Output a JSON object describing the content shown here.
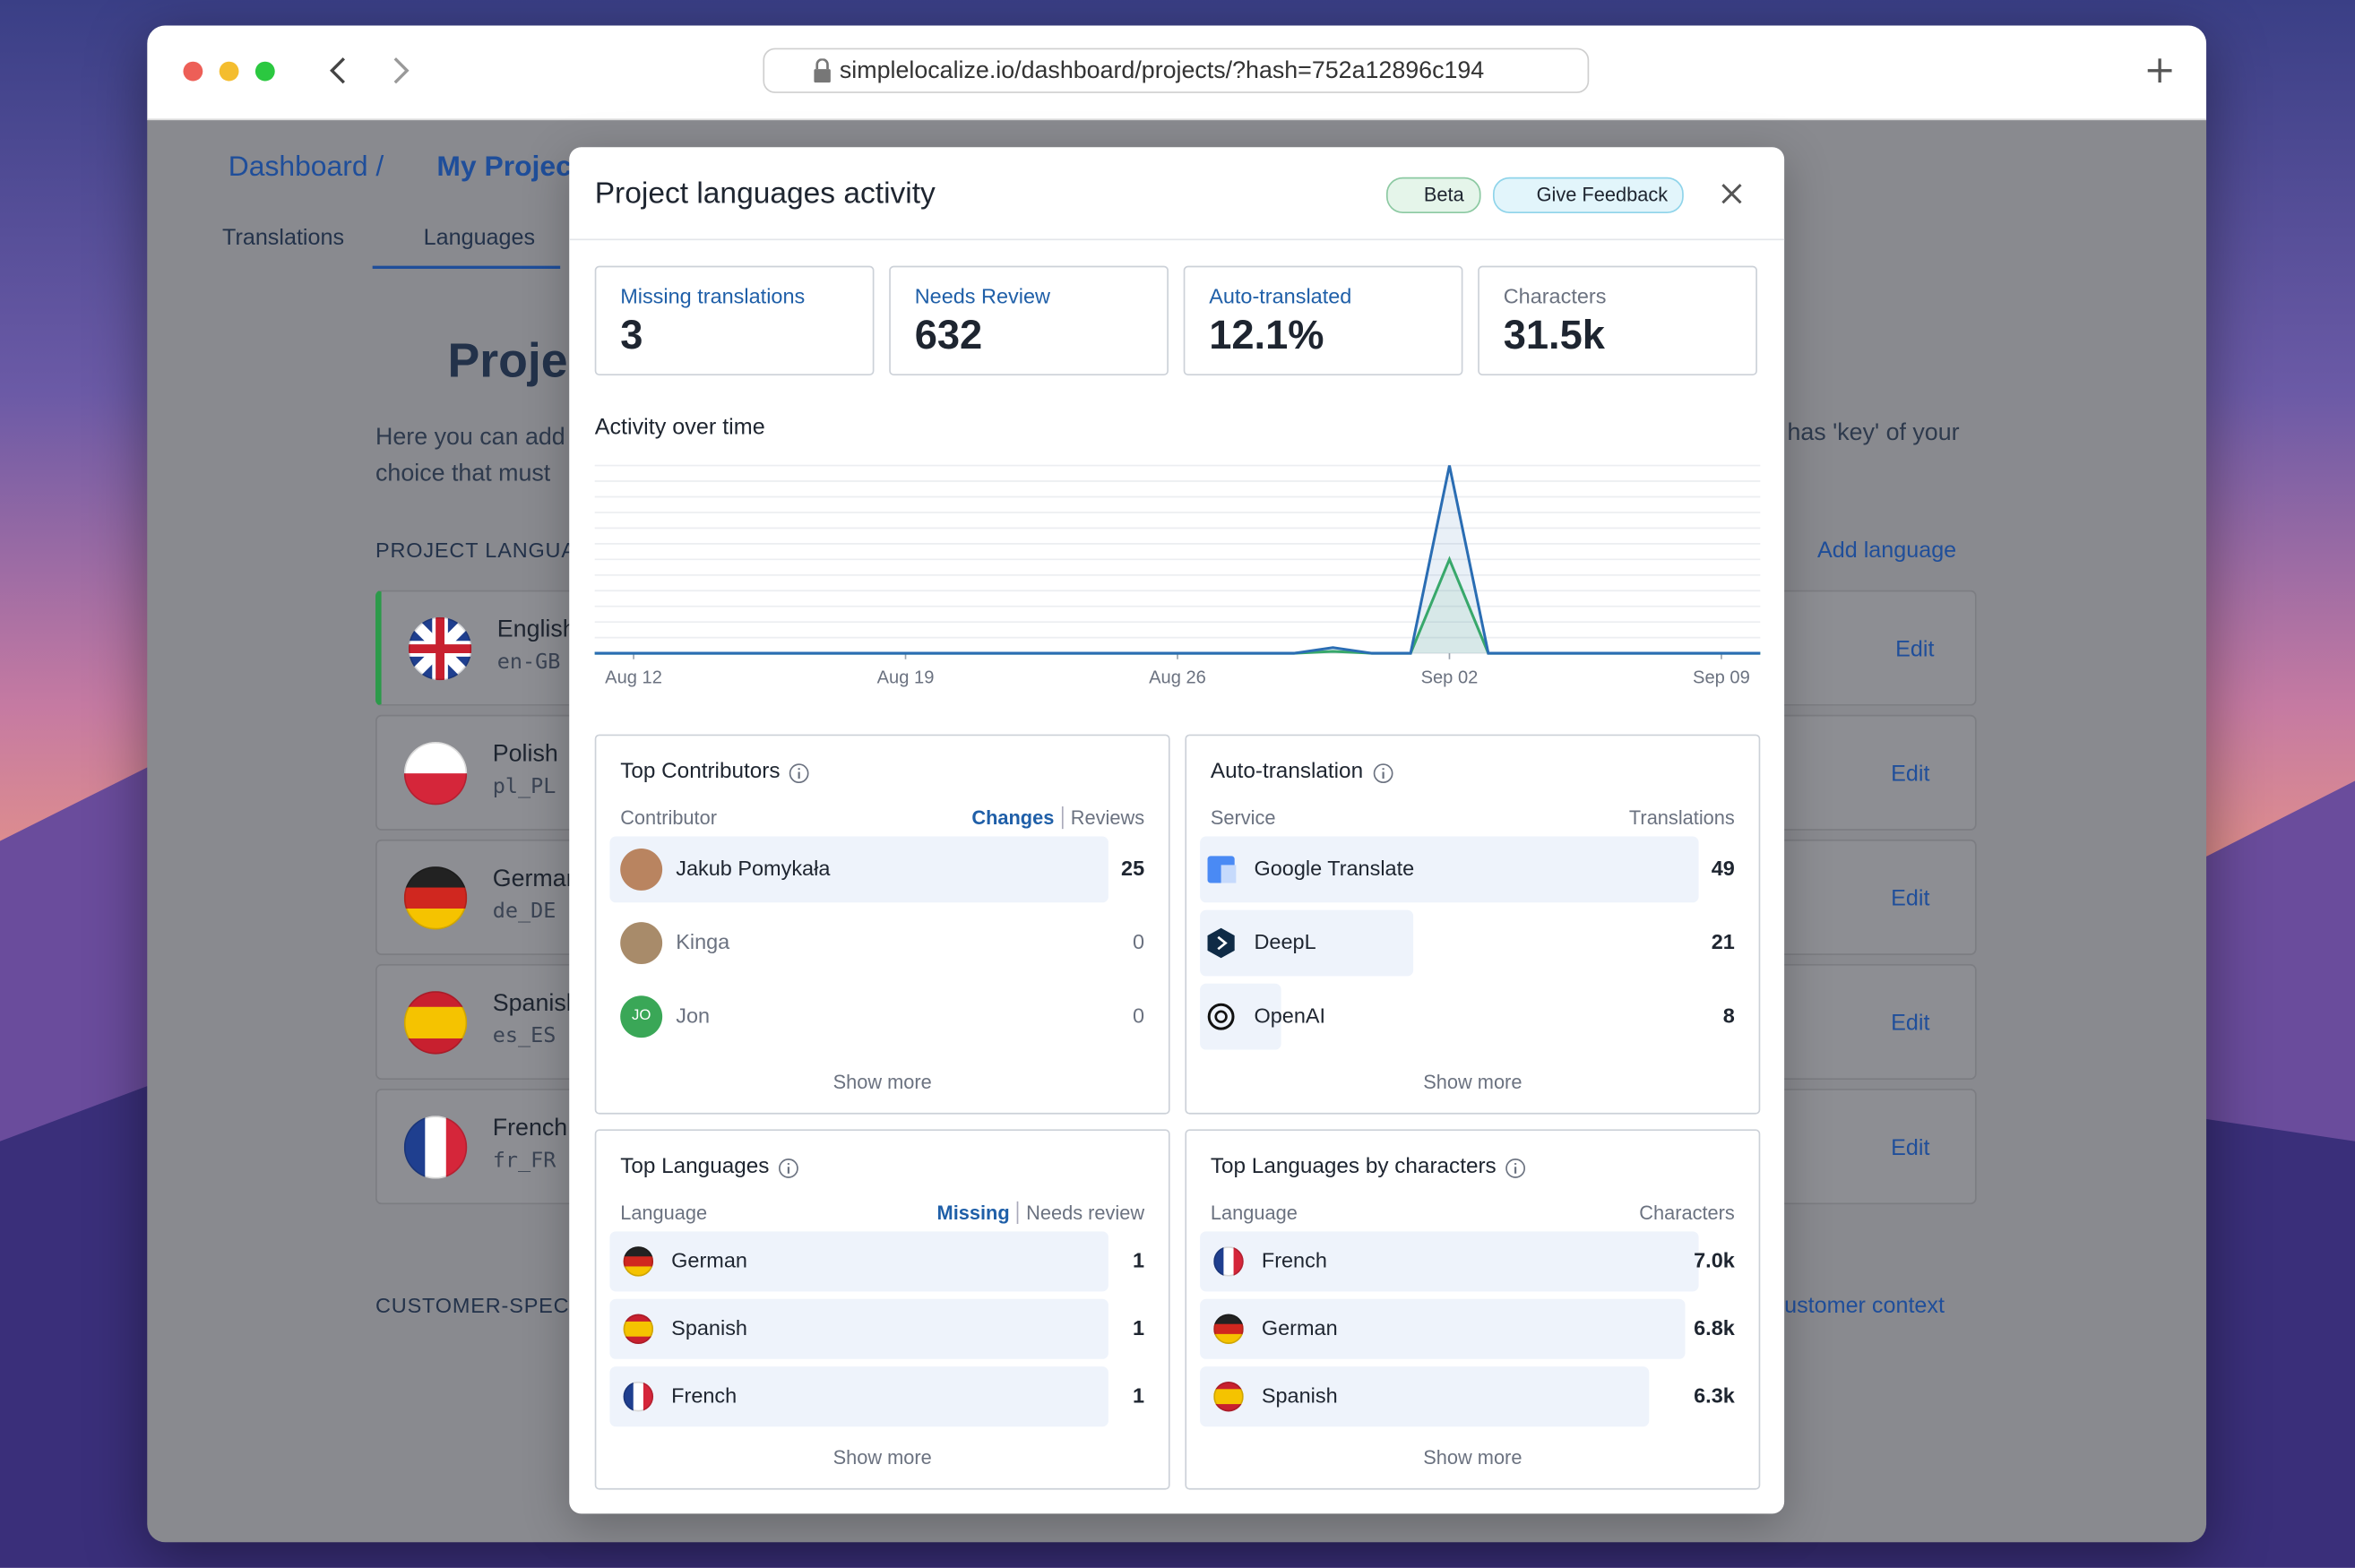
{
  "browser": {
    "url": "simplelocalize.io/dashboard/projects/?hash=752a12896c194"
  },
  "page": {
    "breadcrumb": [
      "Dashboard",
      "My Project"
    ],
    "tabs": [
      "Translations",
      "Languages"
    ],
    "heading": "Proje",
    "intro": [
      "Here you can add",
      "choice that must"
    ],
    "intro_right": "has 'key' of your",
    "section": "PROJECT LANGUA",
    "add_language": "Add language",
    "languages": [
      {
        "name": "English",
        "code": "en-GB"
      },
      {
        "name": "Polish",
        "code": "pl_PL"
      },
      {
        "name": "German",
        "code": "de_DE"
      },
      {
        "name": "Spanish",
        "code": "es_ES"
      },
      {
        "name": "French",
        "code": "fr_FR"
      }
    ],
    "edit": "Edit",
    "section2": "CUSTOMER-SPECI",
    "customer_link": "ustomer context"
  },
  "modal": {
    "title": "Project languages activity",
    "badges": [
      "Beta",
      "Give Feedback"
    ],
    "stats": [
      {
        "label": "Missing translations",
        "value": "3"
      },
      {
        "label": "Needs Review",
        "value": "632"
      },
      {
        "label": "Auto-translated",
        "value": "12.1%"
      },
      {
        "label": "Characters",
        "value": "31.5k"
      }
    ],
    "chart_title": "Activity over time",
    "show_more": "Show more",
    "cards": [
      {
        "title": "Top Contributors",
        "column": "Contributor",
        "metrics": [
          "Changes",
          "Reviews"
        ],
        "rows": [
          {
            "name": "Jakub Pomykała",
            "value": 25
          },
          {
            "name": "Kinga",
            "value": 0
          },
          {
            "name": "Jon",
            "initials": "JO",
            "value": 0
          }
        ]
      },
      {
        "title": "Auto-translation",
        "column": "Service",
        "metrics": [
          "Translations"
        ],
        "rows": [
          {
            "name": "Google Translate",
            "value": 49
          },
          {
            "name": "DeepL",
            "value": 21
          },
          {
            "name": "OpenAI",
            "value": 8
          }
        ]
      },
      {
        "title": "Top Languages",
        "column": "Language",
        "metrics": [
          "Missing",
          "Needs review"
        ],
        "rows": [
          {
            "name": "German",
            "value": 1
          },
          {
            "name": "Spanish",
            "value": 1
          },
          {
            "name": "French",
            "value": 1
          }
        ]
      },
      {
        "title": "Top Languages by characters",
        "column": "Language",
        "metrics": [
          "Characters"
        ],
        "rows": [
          {
            "name": "French",
            "value": 7000,
            "value_label": "7.0k"
          },
          {
            "name": "German",
            "value": 6800,
            "value_label": "6.8k"
          },
          {
            "name": "Spanish",
            "value": 6300,
            "value_label": "6.3k"
          }
        ]
      }
    ]
  },
  "chart_data": {
    "type": "line",
    "categories": [
      null,
      "Aug 12",
      null,
      null,
      null,
      null,
      null,
      null,
      "Aug 19",
      null,
      null,
      null,
      null,
      null,
      null,
      "Aug 26",
      null,
      null,
      null,
      null,
      null,
      null,
      "Sep 02",
      null,
      null,
      null,
      null,
      null,
      null,
      "Sep 09",
      null
    ],
    "series": [
      {
        "color": "#2a6db3",
        "values": [
          0,
          0,
          0,
          0,
          0,
          0,
          0,
          0,
          0,
          0,
          0,
          0,
          0,
          0,
          0,
          0,
          0,
          0,
          0,
          3,
          0,
          0,
          100,
          0,
          0,
          0,
          0,
          0,
          0,
          0,
          0
        ]
      },
      {
        "color": "#38a86b",
        "values": [
          0,
          0,
          0,
          0,
          0,
          0,
          0,
          0,
          0,
          0,
          0,
          0,
          0,
          0,
          0,
          0,
          0,
          0,
          0,
          1,
          0,
          0,
          50,
          0,
          0,
          0,
          0,
          0,
          0,
          0,
          0
        ]
      }
    ],
    "ylim": [
      0,
      100
    ],
    "grid": true
  }
}
